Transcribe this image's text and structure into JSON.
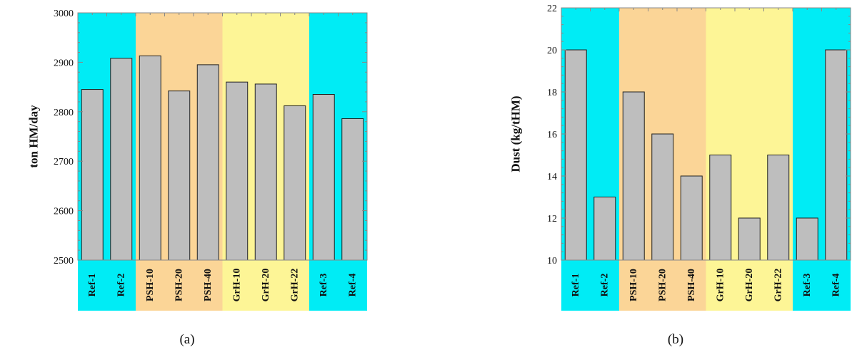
{
  "colors": {
    "ref": "#00ecf5",
    "psh": "#fbd597",
    "grh": "#fdf596",
    "bar": "#bebebe",
    "bar_edge": "#222222",
    "frame": "#888888"
  },
  "chart_data": [
    {
      "type": "bar",
      "panel_label": "(a)",
      "ylabel": "ton HM/day",
      "ylim": [
        2500,
        3000
      ],
      "yticks": [
        "2500",
        "2600",
        "2700",
        "2800",
        "2900",
        "3000"
      ],
      "categories": [
        "Ref-1",
        "Ref-2",
        "PSH-10",
        "PSH-20",
        "PSH-40",
        "GrH-10",
        "GrH-20",
        "GrH-22",
        "Ref-3",
        "Ref-4"
      ],
      "values": [
        2845,
        2908,
        2913,
        2842,
        2895,
        2860,
        2856,
        2812,
        2835,
        2786
      ],
      "groups": [
        {
          "group": "ref",
          "start": 0,
          "end": 2
        },
        {
          "group": "psh",
          "start": 2,
          "end": 5
        },
        {
          "group": "grh",
          "start": 5,
          "end": 8
        },
        {
          "group": "ref",
          "start": 8,
          "end": 10
        }
      ],
      "grid": false
    },
    {
      "type": "bar",
      "panel_label": "(b)",
      "ylabel": "Dust (kg/tHM)",
      "ylim": [
        10,
        22
      ],
      "yticks": [
        "10",
        "12",
        "14",
        "16",
        "18",
        "20",
        "22"
      ],
      "categories": [
        "Ref-1",
        "Ref-2",
        "PSH-10",
        "PSH-20",
        "PSH-40",
        "GrH-10",
        "GrH-20",
        "GrH-22",
        "Ref-3",
        "Ref-4"
      ],
      "values": [
        20,
        13,
        18,
        16,
        14,
        15,
        12,
        15,
        12,
        20
      ],
      "groups": [
        {
          "group": "ref",
          "start": 0,
          "end": 2
        },
        {
          "group": "psh",
          "start": 2,
          "end": 5
        },
        {
          "group": "grh",
          "start": 5,
          "end": 8
        },
        {
          "group": "ref",
          "start": 8,
          "end": 10
        }
      ],
      "grid": false
    }
  ]
}
